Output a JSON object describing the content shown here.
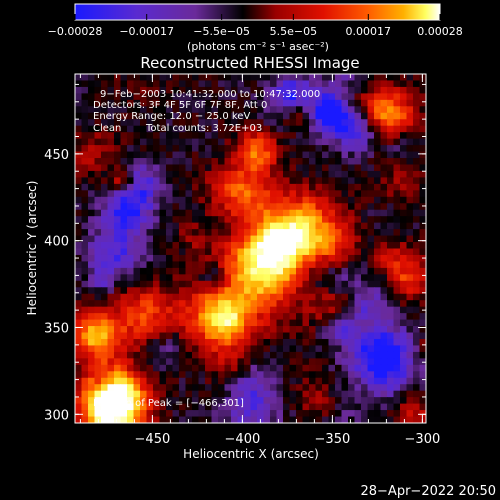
{
  "chart_data": {
    "type": "heatmap",
    "title": "Reconstructed RHESSI Image",
    "xlabel": "Heliocentric X (arcsec)",
    "ylabel": "Heliocentric Y (arcsec)",
    "xlim": [
      -493,
      -298
    ],
    "ylim": [
      295,
      496
    ],
    "xticks": [
      -450,
      -400,
      -350,
      -300
    ],
    "xtick_labels": [
      "−450",
      "−400",
      "−350",
      "−300"
    ],
    "yticks": [
      300,
      350,
      400,
      450
    ],
    "ytick_labels": [
      "300",
      "350",
      "400",
      "450"
    ],
    "colorbar": {
      "range": [
        -0.00028,
        0.00028
      ],
      "ticks": [
        -0.00028,
        -0.00017,
        -5.5e-05,
        5.5e-05,
        0.00017,
        0.00028
      ],
      "tick_labels": [
        "−0.00028",
        "−0.00017",
        "−5.5e−05",
        "5.5e−05",
        "0.00017",
        "0.00028"
      ],
      "units": "(photons cm⁻² s⁻¹ asec⁻²)"
    },
    "colormap": {
      "stops": [
        "#1a1aff",
        "#5a2ad0",
        "#6a2a9a",
        "#000000",
        "#9a0000",
        "#e01000",
        "#ff5a00",
        "#ffb000",
        "#ffff60",
        "#ffffff"
      ]
    },
    "grid": false,
    "annotations": {
      "time_range": "9−Feb−2003 10:41:32.000 to 10:47:32.000",
      "detectors": "Detectors: 3F 4F 5F 6F 7F 8F, Att 0",
      "energy": "Energy Range: 12.0 − 25.0 keV",
      "clean_label": "Clean",
      "counts": "Total counts: 3.72E+03",
      "peak": "Position of Peak = [−466,301]"
    },
    "peak_position": [
      -466,
      301
    ],
    "timestamp": "28−Apr−2022 20:50"
  }
}
